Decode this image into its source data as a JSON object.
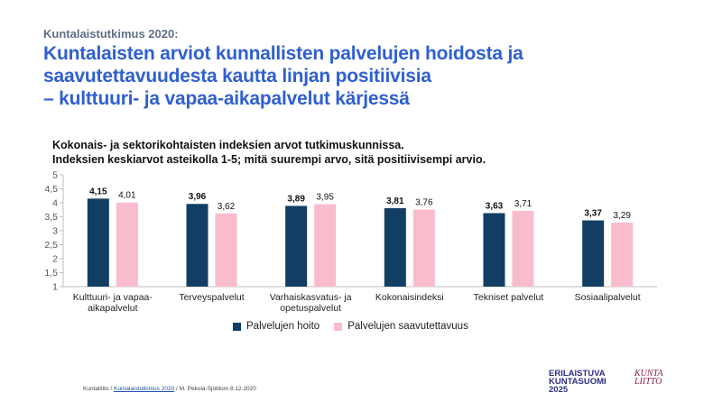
{
  "header": {
    "kicker": "Kuntalaistutkimus 2020:",
    "title_lines": [
      "Kuntalaisten arviot kunnallisten palvelujen hoidosta ja",
      "saavutettavuudesta kautta linjan positiivisia",
      "– kulttuuri- ja vapaa-aikapalvelut kärjessä"
    ],
    "subtitle_lines": [
      "Kokonais- ja sektorikohtaisten indeksien arvot tutkimuskunnissa.",
      "Indeksien keskiarvot asteikolla 1-5; mitä suurempi arvo, sitä positiivisempi arvio."
    ]
  },
  "chart_data": {
    "type": "bar",
    "categories": [
      [
        "Kulttuuri- ja vapaa-",
        "aikapalvelut"
      ],
      [
        "Terveyspalvelut"
      ],
      [
        "Varhaiskasvatus- ja",
        "opetuspalvelut"
      ],
      [
        "Kokonaisindeksi"
      ],
      [
        "Tekniset palvelut"
      ],
      [
        "Sosiaalipalvelut"
      ]
    ],
    "series": [
      {
        "name": "Palvelujen hoito",
        "values": [
          4.15,
          3.96,
          3.89,
          3.81,
          3.63,
          3.37
        ],
        "labels": [
          "4,15",
          "3,96",
          "3,89",
          "3,81",
          "3,63",
          "3,37"
        ],
        "color": "#123e63"
      },
      {
        "name": "Palvelujen saavutettavuus",
        "values": [
          4.01,
          3.62,
          3.95,
          3.76,
          3.71,
          3.29
        ],
        "labels": [
          "4,01",
          "3,62",
          "3,95",
          "3,76",
          "3,71",
          "3,29"
        ],
        "color": "#f9bccd"
      }
    ],
    "ylim": [
      1,
      5
    ],
    "yticks": [
      1,
      1.5,
      2,
      2.5,
      3,
      3.5,
      4,
      4.5,
      5
    ],
    "ytick_labels": [
      "1",
      "1,5",
      "2",
      "2,5",
      "3",
      "3,5",
      "4",
      "4,5",
      "5"
    ],
    "legend_position": "bottom",
    "grid": false
  },
  "footer": {
    "org": "Kuntaliitto /",
    "link": "Kuntalaistutkimus 2020",
    "rest": "/ M. Pekola-Sjöblom 8.12.2020"
  },
  "logos": {
    "erilaistuva_lines": [
      "ERILAISTUVA",
      "KUNTASUOMI",
      "2025"
    ],
    "kuntaliitto_lines": [
      "KUNTA",
      "LIITTO"
    ]
  }
}
